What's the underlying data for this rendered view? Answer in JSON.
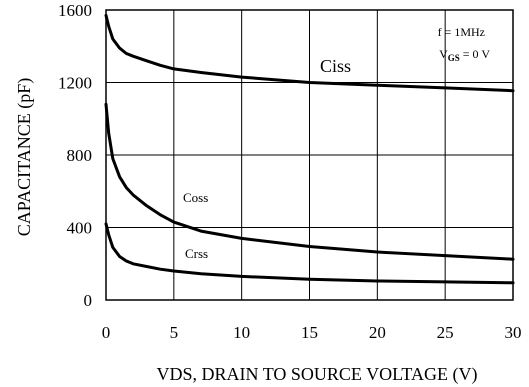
{
  "chart_data": {
    "type": "line",
    "xlabel": "VDS, DRAIN TO SOURCE VOLTAGE (V)",
    "ylabel": "CAPACITANCE (pF)",
    "xlim": [
      0,
      30
    ],
    "ylim": [
      0,
      1600
    ],
    "x_ticks": [
      0,
      5,
      10,
      15,
      20,
      25,
      30
    ],
    "y_ticks": [
      0,
      400,
      800,
      1200,
      1600
    ],
    "grid": true,
    "annotation": {
      "line1": "f = 1MHz",
      "line2_prefix": "V",
      "line2_sub": "GS",
      "line2_suffix": " = 0 V"
    },
    "series": [
      {
        "name": "Ciss",
        "x": [
          0,
          0.2,
          0.5,
          1,
          1.5,
          2,
          3,
          4,
          5,
          7,
          10,
          15,
          20,
          25,
          30
        ],
        "y": [
          1570,
          1510,
          1440,
          1390,
          1360,
          1345,
          1320,
          1295,
          1275,
          1255,
          1230,
          1200,
          1185,
          1170,
          1155
        ]
      },
      {
        "name": "Coss",
        "x": [
          0,
          0.2,
          0.5,
          1,
          1.5,
          2,
          3,
          4,
          5,
          7,
          10,
          15,
          20,
          25,
          30
        ],
        "y": [
          1080,
          920,
          780,
          680,
          620,
          580,
          520,
          470,
          430,
          380,
          340,
          295,
          265,
          245,
          225
        ]
      },
      {
        "name": "Crss",
        "x": [
          0,
          0.2,
          0.5,
          1,
          1.5,
          2,
          3,
          4,
          5,
          7,
          10,
          15,
          20,
          25,
          30
        ],
        "y": [
          420,
          360,
          290,
          240,
          215,
          200,
          185,
          170,
          160,
          145,
          130,
          115,
          105,
          100,
          95
        ]
      }
    ]
  }
}
